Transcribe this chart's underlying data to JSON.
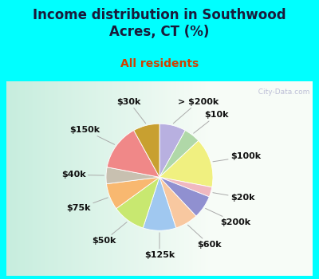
{
  "title": "Income distribution in Southwood\nAcres, CT (%)",
  "subtitle": "All residents",
  "segments": [
    {
      "label": "> $200k",
      "value": 8,
      "color": "#b8b0e0"
    },
    {
      "label": "$10k",
      "value": 5,
      "color": "#b0d8a8"
    },
    {
      "label": "$100k",
      "value": 15,
      "color": "#f0f080"
    },
    {
      "label": "$20k",
      "value": 3,
      "color": "#f0b8c0"
    },
    {
      "label": "$200k",
      "value": 7,
      "color": "#9090d0"
    },
    {
      "label": "$60k",
      "value": 7,
      "color": "#f8c8a0"
    },
    {
      "label": "$125k",
      "value": 10,
      "color": "#a0c8f0"
    },
    {
      "label": "$50k",
      "value": 10,
      "color": "#c8e870"
    },
    {
      "label": "$75k",
      "value": 8,
      "color": "#f8b870"
    },
    {
      "label": "$40k",
      "value": 5,
      "color": "#c8c0b0"
    },
    {
      "label": "$150k",
      "value": 14,
      "color": "#f08888"
    },
    {
      "label": "$30k",
      "value": 8,
      "color": "#c8a030"
    }
  ],
  "title_fontsize": 12,
  "subtitle_fontsize": 10,
  "label_fontsize": 8,
  "title_color": "#1a1a3a",
  "subtitle_color": "#d04000",
  "cyan_color": "#00ffff",
  "watermark": "  City-Data.com"
}
